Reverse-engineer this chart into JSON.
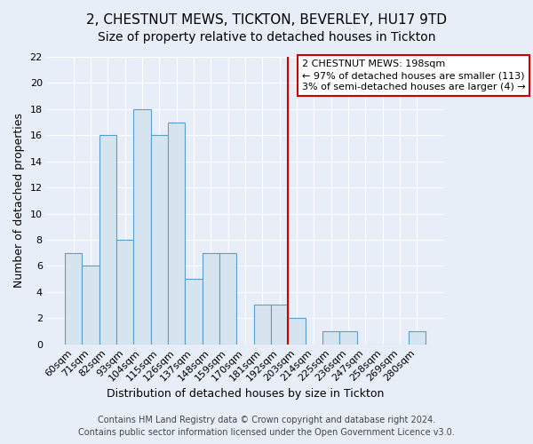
{
  "title": "2, CHESTNUT MEWS, TICKTON, BEVERLEY, HU17 9TD",
  "subtitle": "Size of property relative to detached houses in Tickton",
  "xlabel": "Distribution of detached houses by size in Tickton",
  "ylabel": "Number of detached properties",
  "bar_labels": [
    "60sqm",
    "71sqm",
    "82sqm",
    "93sqm",
    "104sqm",
    "115sqm",
    "126sqm",
    "137sqm",
    "148sqm",
    "159sqm",
    "170sqm",
    "181sqm",
    "192sqm",
    "203sqm",
    "214sqm",
    "225sqm",
    "236sqm",
    "247sqm",
    "258sqm",
    "269sqm",
    "280sqm"
  ],
  "bar_values": [
    7,
    6,
    16,
    8,
    18,
    16,
    17,
    5,
    7,
    7,
    0,
    3,
    3,
    2,
    0,
    1,
    1,
    0,
    0,
    0,
    1
  ],
  "bar_color": "#d6e4f0",
  "bar_edge_color": "#5a9ec9",
  "vline_x": 13.0,
  "vline_color": "#cc0000",
  "annotation_text": "2 CHESTNUT MEWS: 198sqm\n← 97% of detached houses are smaller (113)\n3% of semi-detached houses are larger (4) →",
  "annotation_box_color": "#ffffff",
  "annotation_box_edge": "#cc0000",
  "ylim": [
    0,
    22
  ],
  "yticks": [
    0,
    2,
    4,
    6,
    8,
    10,
    12,
    14,
    16,
    18,
    20,
    22
  ],
  "footer1": "Contains HM Land Registry data © Crown copyright and database right 2024.",
  "footer2": "Contains public sector information licensed under the Open Government Licence v3.0.",
  "bg_color": "#e8eef8",
  "plot_bg_color": "#e8eef8",
  "grid_color": "#ffffff",
  "title_fontsize": 11,
  "subtitle_fontsize": 10,
  "label_fontsize": 9,
  "tick_fontsize": 8,
  "footer_fontsize": 7,
  "ann_fontsize": 8
}
